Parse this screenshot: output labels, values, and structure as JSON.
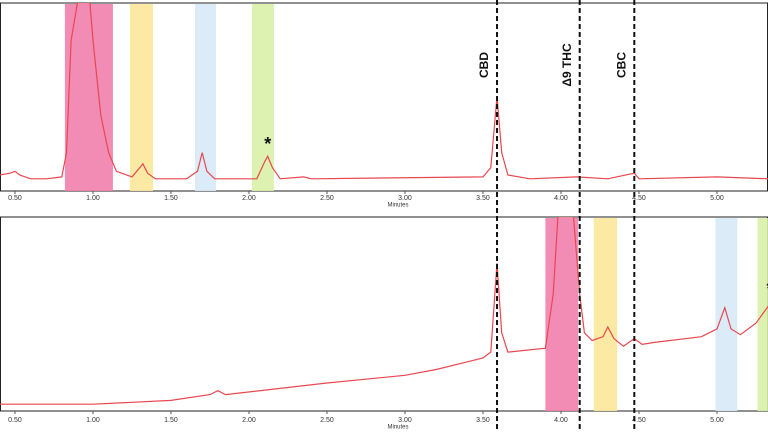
{
  "chart_data": [
    {
      "type": "line",
      "xlabel": "Minutes",
      "xlim": [
        0.404,
        5.327
      ],
      "ylim": [
        0,
        100
      ],
      "color": "#e8474f",
      "xticks": [
        {
          "value": 0.5,
          "label": "0.50"
        },
        {
          "value": 1.0,
          "label": "1.00"
        },
        {
          "value": 1.5,
          "label": "1.50"
        },
        {
          "value": 2.0,
          "label": "2.00"
        },
        {
          "value": 2.5,
          "label": "2.50"
        },
        {
          "value": 3.0,
          "label": "3.00"
        },
        {
          "value": 3.5,
          "label": "3.50"
        },
        {
          "value": 4.0,
          "label": "4.00"
        },
        {
          "value": 4.5,
          "label": "4.50"
        },
        {
          "value": 5.0,
          "label": "5.00"
        }
      ],
      "bands": [
        {
          "x": [
            0.82,
            1.128
          ],
          "color": "#f280ad"
        },
        {
          "x": [
            1.237,
            1.385
          ],
          "color": "#fbe79a"
        },
        {
          "x": [
            1.654,
            1.789
          ],
          "color": "#d7eaf7"
        },
        {
          "x": [
            2.019,
            2.16
          ],
          "color": "#d9f0a8"
        }
      ],
      "markers": [
        {
          "label": "CBD",
          "x": 3.59
        },
        {
          "label": "Δ9 THC",
          "x": 4.12
        },
        {
          "label": "CBC",
          "x": 4.47
        }
      ],
      "annotations": [
        {
          "text": "*",
          "x": 2.12,
          "y": 24
        }
      ],
      "x": [
        0.4,
        0.47,
        0.5,
        0.53,
        0.6,
        0.7,
        0.8,
        0.83,
        0.86,
        0.9,
        0.98,
        1.0,
        1.05,
        1.1,
        1.15,
        1.25,
        1.3,
        1.32,
        1.35,
        1.4,
        1.6,
        1.67,
        1.7,
        1.73,
        1.78,
        2.05,
        2.1,
        2.12,
        2.15,
        2.2,
        2.35,
        2.4,
        3.5,
        3.55,
        3.59,
        3.62,
        3.66,
        3.8,
        4.1,
        4.3,
        4.47,
        4.5,
        5.0,
        5.33
      ],
      "values": [
        8,
        9,
        10,
        8,
        6,
        6,
        7,
        20,
        80,
        100,
        100,
        80,
        40,
        20,
        10,
        7,
        12,
        14,
        9,
        6,
        6,
        10,
        20,
        10,
        6,
        6,
        15,
        18,
        12,
        6,
        7,
        6,
        7,
        12,
        50,
        20,
        8,
        6,
        7,
        6,
        9,
        6,
        7,
        6
      ]
    },
    {
      "type": "line",
      "xlabel": "Minutes",
      "xlim": [
        0.404,
        5.327
      ],
      "ylim": [
        0,
        100
      ],
      "color": "#e8474f",
      "xticks": [
        {
          "value": 0.5,
          "label": "0.50"
        },
        {
          "value": 1.0,
          "label": "1.00"
        },
        {
          "value": 1.5,
          "label": "1.50"
        },
        {
          "value": 2.0,
          "label": "2.00"
        },
        {
          "value": 2.5,
          "label": "2.50"
        },
        {
          "value": 3.0,
          "label": "3.00"
        },
        {
          "value": 3.5,
          "label": "3.50"
        },
        {
          "value": 4.0,
          "label": "4.00"
        },
        {
          "value": 4.5,
          "label": "4.50"
        },
        {
          "value": 5.0,
          "label": "5.00"
        }
      ],
      "bands": [
        {
          "x": [
            3.9,
            4.11
          ],
          "color": "#f280ad"
        },
        {
          "x": [
            4.21,
            4.36
          ],
          "color": "#fbe79a"
        },
        {
          "x": [
            4.99,
            5.13
          ],
          "color": "#d7eaf7"
        },
        {
          "x": [
            5.26,
            5.33
          ],
          "color": "#d9f0a8"
        }
      ],
      "annotations": [
        {
          "text": "*",
          "x": 5.34,
          "y": 62
        }
      ],
      "x": [
        0.4,
        1.0,
        1.5,
        1.75,
        1.8,
        1.85,
        2.5,
        3.0,
        3.2,
        3.4,
        3.5,
        3.55,
        3.59,
        3.62,
        3.66,
        3.9,
        3.95,
        3.98,
        4.08,
        4.12,
        4.15,
        4.2,
        4.27,
        4.3,
        4.34,
        4.4,
        4.47,
        4.52,
        4.6,
        4.9,
        5.0,
        5.05,
        5.09,
        5.15,
        5.25,
        5.33
      ],
      "values": [
        3,
        3,
        5,
        8,
        10,
        8,
        14,
        18,
        21,
        25,
        27,
        30,
        76,
        40,
        30,
        32,
        60,
        100,
        100,
        60,
        40,
        36,
        38,
        43,
        37,
        33,
        37,
        34,
        35,
        38,
        42,
        53,
        42,
        39,
        45,
        54
      ]
    }
  ]
}
